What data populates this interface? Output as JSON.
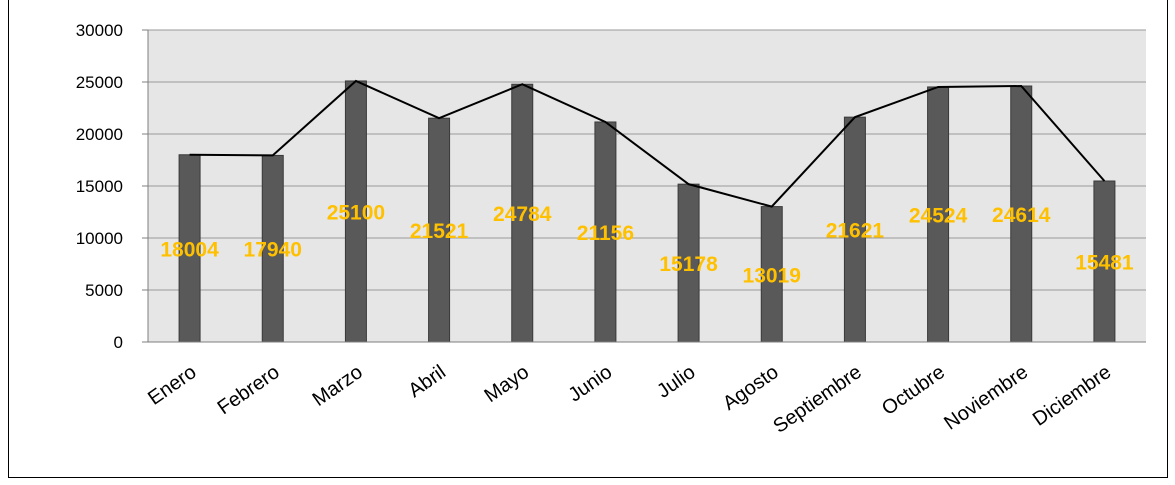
{
  "chart_data": {
    "type": "bar",
    "categories": [
      "Enero",
      "Febrero",
      "Marzo",
      "Abril",
      "Mayo",
      "Junio",
      "Julio",
      "Agosto",
      "Septiembre",
      "Octubre",
      "Noviembre",
      "Diciembre"
    ],
    "values": [
      18004,
      17940,
      25100,
      21521,
      24784,
      21156,
      15178,
      13019,
      21621,
      24524,
      24614,
      15481
    ],
    "data_labels": [
      "18004",
      "17940",
      "25100",
      "21521",
      "24784",
      "21156",
      "15178",
      "13019",
      "21621",
      "24524",
      "24614",
      "15481"
    ],
    "overlay_line": true,
    "ylim": [
      0,
      30000
    ],
    "yticks": [
      "0",
      "5000",
      "10000",
      "15000",
      "20000",
      "25000",
      "30000"
    ],
    "ytick_values": [
      0,
      5000,
      10000,
      15000,
      20000,
      25000,
      30000
    ],
    "grid": true,
    "title": "",
    "xlabel": "",
    "ylabel": ""
  },
  "colors": {
    "bar": "#595959",
    "bar_edge": "#3a3a3a",
    "line": "#000000",
    "plot_background": "#e6e6e6",
    "gridline": "#9a9a9a",
    "data_label": "#ffc000"
  }
}
